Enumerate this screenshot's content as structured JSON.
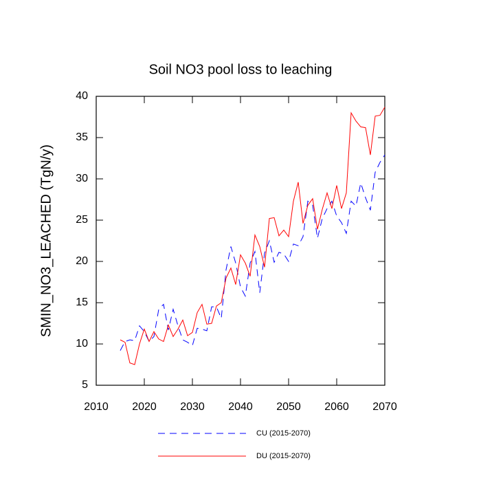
{
  "chart_data": {
    "type": "line",
    "title": "Soil NO3 pool loss to leaching",
    "y_label": "SMIN_NO3_LEACHED  (TgN/y)",
    "x": [
      2015,
      2016,
      2017,
      2018,
      2019,
      2020,
      2021,
      2022,
      2023,
      2024,
      2025,
      2026,
      2027,
      2028,
      2029,
      2030,
      2031,
      2032,
      2033,
      2034,
      2035,
      2036,
      2037,
      2038,
      2039,
      2040,
      2041,
      2042,
      2043,
      2044,
      2045,
      2046,
      2047,
      2048,
      2049,
      2050,
      2051,
      2052,
      2053,
      2054,
      2055,
      2056,
      2057,
      2058,
      2059,
      2060,
      2061,
      2062,
      2063,
      2064,
      2065,
      2066,
      2067,
      2068,
      2069,
      2070
    ],
    "series": [
      {
        "name": "CU (2015-2070)",
        "color": "#0000ff",
        "dash": true,
        "values": [
          9.2,
          10.3,
          10.5,
          10.4,
          12.2,
          11.5,
          10.3,
          10.9,
          14.2,
          14.8,
          11.7,
          14.2,
          12.2,
          10.5,
          10.2,
          9.8,
          11.9,
          11.8,
          11.6,
          14.5,
          14.5,
          13.1,
          19.0,
          21.8,
          19.8,
          16.9,
          15.8,
          19.8,
          21.2,
          16.2,
          21.0,
          22.5,
          19.9,
          21.1,
          20.9,
          20.0,
          22.1,
          21.9,
          23.0,
          27.3,
          26.8,
          22.8,
          25.2,
          26.4,
          27.3,
          25.5,
          24.7,
          23.4,
          27.3,
          26.7,
          29.5,
          27.7,
          26.2,
          30.8,
          32.0,
          32.9
        ]
      },
      {
        "name": "DU (2015-2070)",
        "color": "#ff0000",
        "dash": false,
        "values": [
          10.5,
          10.2,
          7.7,
          7.5,
          10.0,
          11.8,
          10.3,
          11.5,
          10.6,
          10.3,
          12.3,
          10.9,
          11.8,
          12.9,
          11.0,
          11.4,
          13.8,
          14.8,
          12.4,
          12.5,
          14.6,
          15.0,
          18.0,
          19.2,
          17.2,
          20.8,
          19.8,
          18.2,
          23.2,
          21.8,
          19.3,
          25.2,
          25.3,
          23.1,
          23.8,
          23.0,
          27.3,
          29.6,
          24.6,
          26.8,
          27.6,
          23.9,
          26.3,
          28.3,
          26.4,
          29.2,
          26.4,
          28.3,
          38.0,
          37.0,
          36.3,
          36.2,
          32.9,
          37.6,
          37.7,
          38.7
        ]
      }
    ],
    "xlim": [
      2010,
      2070
    ],
    "xticks": [
      2010,
      2020,
      2030,
      2040,
      2050,
      2060,
      2070
    ],
    "ylim": [
      5,
      40
    ],
    "yticks": [
      5,
      10,
      15,
      20,
      25,
      30,
      35,
      40
    ]
  }
}
